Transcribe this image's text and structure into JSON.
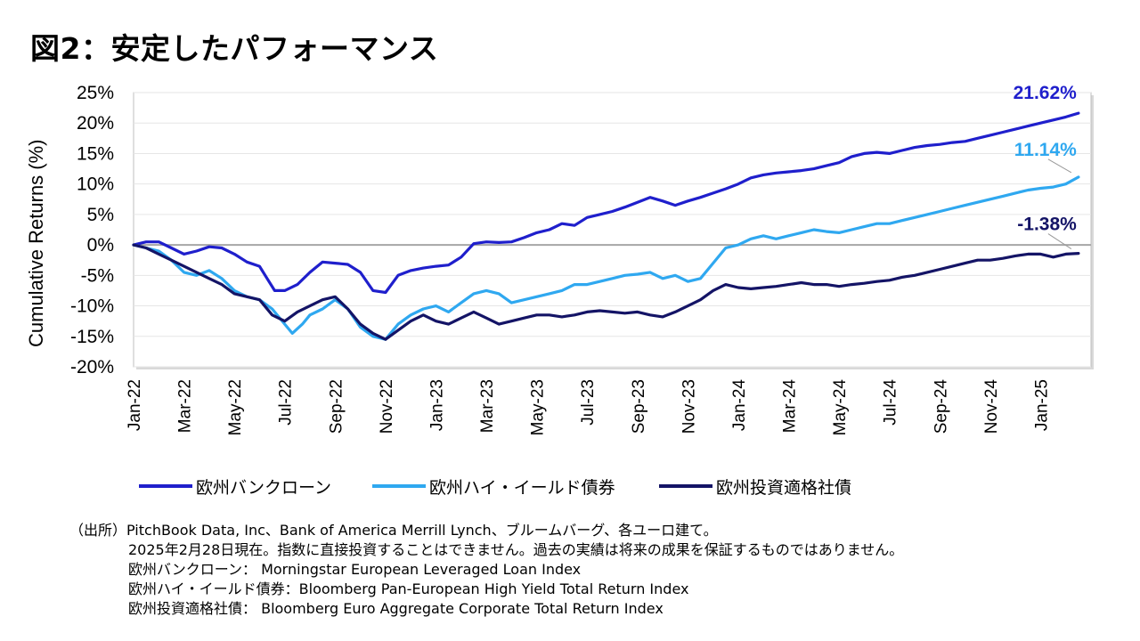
{
  "title": "図2：安定したパフォーマンス",
  "chart_data": {
    "type": "line",
    "ylabel": "Cumulative Returns (%)",
    "ylim": [
      -20,
      25
    ],
    "yticks": [
      25,
      20,
      15,
      10,
      5,
      0,
      -5,
      -10,
      -15,
      -20
    ],
    "ytick_labels": [
      "25%",
      "20%",
      "15%",
      "10%",
      "5%",
      "0%",
      "-5%",
      "-10%",
      "-15%",
      "-20%"
    ],
    "xlim": [
      0,
      38
    ],
    "x_tick_positions": [
      0,
      2,
      4,
      6,
      8,
      10,
      12,
      14,
      16,
      18,
      20,
      22,
      24,
      26,
      28,
      30,
      32,
      34,
      36
    ],
    "x_tick_labels": [
      "Jan-22",
      "Mar-22",
      "May-22",
      "Jul-22",
      "Sep-22",
      "Nov-22",
      "Jan-23",
      "Mar-23",
      "May-23",
      "Jul-23",
      "Sep-23",
      "Nov-23",
      "Jan-24",
      "Mar-24",
      "May-24",
      "Jul-24",
      "Sep-24",
      "Nov-24",
      "Jan-25"
    ],
    "grid": "horizontal",
    "legend_position": "bottom",
    "series": [
      {
        "name": "欧州バンクローン",
        "color": "#1f1fcc",
        "end_label": "21.62%",
        "points": [
          [
            0,
            0
          ],
          [
            0.5,
            0.5
          ],
          [
            1,
            0.5
          ],
          [
            1.5,
            -0.5
          ],
          [
            2,
            -1.5
          ],
          [
            2.5,
            -1.0
          ],
          [
            3,
            -0.3
          ],
          [
            3.5,
            -0.5
          ],
          [
            4,
            -1.5
          ],
          [
            4.5,
            -2.8
          ],
          [
            5,
            -3.5
          ],
          [
            5.3,
            -5.5
          ],
          [
            5.6,
            -7.5
          ],
          [
            6,
            -7.5
          ],
          [
            6.5,
            -6.5
          ],
          [
            7,
            -4.5
          ],
          [
            7.5,
            -2.8
          ],
          [
            8,
            -3.0
          ],
          [
            8.5,
            -3.2
          ],
          [
            9,
            -4.5
          ],
          [
            9.5,
            -7.5
          ],
          [
            10,
            -7.8
          ],
          [
            10.5,
            -5.0
          ],
          [
            11,
            -4.2
          ],
          [
            11.5,
            -3.8
          ],
          [
            12,
            -3.5
          ],
          [
            12.5,
            -3.3
          ],
          [
            13,
            -2.0
          ],
          [
            13.5,
            0.2
          ],
          [
            14,
            0.5
          ],
          [
            14.5,
            0.4
          ],
          [
            15,
            0.5
          ],
          [
            15.5,
            1.2
          ],
          [
            16,
            2.0
          ],
          [
            16.5,
            2.5
          ],
          [
            17,
            3.5
          ],
          [
            17.5,
            3.2
          ],
          [
            18,
            4.5
          ],
          [
            18.5,
            5.0
          ],
          [
            19,
            5.5
          ],
          [
            19.5,
            6.2
          ],
          [
            20,
            7.0
          ],
          [
            20.5,
            7.8
          ],
          [
            21,
            7.2
          ],
          [
            21.5,
            6.5
          ],
          [
            22,
            7.2
          ],
          [
            22.5,
            7.8
          ],
          [
            23,
            8.5
          ],
          [
            23.5,
            9.2
          ],
          [
            24,
            10.0
          ],
          [
            24.5,
            11.0
          ],
          [
            25,
            11.5
          ],
          [
            25.5,
            11.8
          ],
          [
            26,
            12.0
          ],
          [
            26.5,
            12.2
          ],
          [
            27,
            12.5
          ],
          [
            27.5,
            13.0
          ],
          [
            28,
            13.5
          ],
          [
            28.5,
            14.5
          ],
          [
            29,
            15.0
          ],
          [
            29.5,
            15.2
          ],
          [
            30,
            15.0
          ],
          [
            30.5,
            15.5
          ],
          [
            31,
            16.0
          ],
          [
            31.5,
            16.3
          ],
          [
            32,
            16.5
          ],
          [
            32.5,
            16.8
          ],
          [
            33,
            17.0
          ],
          [
            33.5,
            17.5
          ],
          [
            34,
            18.0
          ],
          [
            34.5,
            18.5
          ],
          [
            35,
            19.0
          ],
          [
            35.5,
            19.5
          ],
          [
            36,
            20.0
          ],
          [
            36.5,
            20.5
          ],
          [
            37,
            21.0
          ],
          [
            37.5,
            21.62
          ]
        ]
      },
      {
        "name": "欧州ハイ・イールド債券",
        "color": "#2fa8f0",
        "end_label": "11.14%",
        "points": [
          [
            0,
            0
          ],
          [
            0.5,
            -0.5
          ],
          [
            1,
            -1.0
          ],
          [
            1.5,
            -2.5
          ],
          [
            2,
            -4.5
          ],
          [
            2.5,
            -5.0
          ],
          [
            3,
            -4.2
          ],
          [
            3.5,
            -5.5
          ],
          [
            4,
            -7.5
          ],
          [
            4.5,
            -8.5
          ],
          [
            5,
            -9.0
          ],
          [
            5.5,
            -10.5
          ],
          [
            6,
            -13.0
          ],
          [
            6.3,
            -14.5
          ],
          [
            6.7,
            -13.0
          ],
          [
            7,
            -11.5
          ],
          [
            7.5,
            -10.5
          ],
          [
            8,
            -9.0
          ],
          [
            8.5,
            -10.5
          ],
          [
            9,
            -13.5
          ],
          [
            9.5,
            -15.0
          ],
          [
            10,
            -15.5
          ],
          [
            10.5,
            -13.0
          ],
          [
            11,
            -11.5
          ],
          [
            11.5,
            -10.5
          ],
          [
            12,
            -10.0
          ],
          [
            12.5,
            -11.0
          ],
          [
            13,
            -9.5
          ],
          [
            13.5,
            -8.0
          ],
          [
            14,
            -7.5
          ],
          [
            14.5,
            -8.0
          ],
          [
            15,
            -9.5
          ],
          [
            15.5,
            -9.0
          ],
          [
            16,
            -8.5
          ],
          [
            16.5,
            -8.0
          ],
          [
            17,
            -7.5
          ],
          [
            17.5,
            -6.5
          ],
          [
            18,
            -6.5
          ],
          [
            18.5,
            -6.0
          ],
          [
            19,
            -5.5
          ],
          [
            19.5,
            -5.0
          ],
          [
            20,
            -4.8
          ],
          [
            20.5,
            -4.5
          ],
          [
            21,
            -5.5
          ],
          [
            21.5,
            -5.0
          ],
          [
            22,
            -6.0
          ],
          [
            22.5,
            -5.5
          ],
          [
            23,
            -3.0
          ],
          [
            23.5,
            -0.5
          ],
          [
            24,
            0
          ],
          [
            24.5,
            1.0
          ],
          [
            25,
            1.5
          ],
          [
            25.5,
            1.0
          ],
          [
            26,
            1.5
          ],
          [
            26.5,
            2.0
          ],
          [
            27,
            2.5
          ],
          [
            27.5,
            2.2
          ],
          [
            28,
            2.0
          ],
          [
            28.5,
            2.5
          ],
          [
            29,
            3.0
          ],
          [
            29.5,
            3.5
          ],
          [
            30,
            3.5
          ],
          [
            30.5,
            4.0
          ],
          [
            31,
            4.5
          ],
          [
            31.5,
            5.0
          ],
          [
            32,
            5.5
          ],
          [
            32.5,
            6.0
          ],
          [
            33,
            6.5
          ],
          [
            33.5,
            7.0
          ],
          [
            34,
            7.5
          ],
          [
            34.5,
            8.0
          ],
          [
            35,
            8.5
          ],
          [
            35.5,
            9.0
          ],
          [
            36,
            9.3
          ],
          [
            36.5,
            9.5
          ],
          [
            37,
            10.0
          ],
          [
            37.5,
            11.14
          ]
        ]
      },
      {
        "name": "欧州投資適格社債",
        "color": "#141466",
        "end_label": "-1.38%",
        "points": [
          [
            0,
            0
          ],
          [
            0.5,
            -0.5
          ],
          [
            1,
            -1.5
          ],
          [
            1.5,
            -2.5
          ],
          [
            2,
            -3.5
          ],
          [
            2.5,
            -4.5
          ],
          [
            3,
            -5.5
          ],
          [
            3.5,
            -6.5
          ],
          [
            4,
            -8.0
          ],
          [
            4.5,
            -8.5
          ],
          [
            5,
            -9.0
          ],
          [
            5.5,
            -11.5
          ],
          [
            6,
            -12.5
          ],
          [
            6.5,
            -11.0
          ],
          [
            7,
            -10.0
          ],
          [
            7.5,
            -9.0
          ],
          [
            8,
            -8.5
          ],
          [
            8.5,
            -10.5
          ],
          [
            9,
            -13.0
          ],
          [
            9.5,
            -14.5
          ],
          [
            10,
            -15.5
          ],
          [
            10.5,
            -14.0
          ],
          [
            11,
            -12.5
          ],
          [
            11.5,
            -11.5
          ],
          [
            12,
            -12.5
          ],
          [
            12.5,
            -13.0
          ],
          [
            13,
            -12.0
          ],
          [
            13.5,
            -11.0
          ],
          [
            14,
            -12.0
          ],
          [
            14.5,
            -13.0
          ],
          [
            15,
            -12.5
          ],
          [
            15.5,
            -12.0
          ],
          [
            16,
            -11.5
          ],
          [
            16.5,
            -11.5
          ],
          [
            17,
            -11.8
          ],
          [
            17.5,
            -11.5
          ],
          [
            18,
            -11.0
          ],
          [
            18.5,
            -10.8
          ],
          [
            19,
            -11.0
          ],
          [
            19.5,
            -11.2
          ],
          [
            20,
            -11.0
          ],
          [
            20.5,
            -11.5
          ],
          [
            21,
            -11.8
          ],
          [
            21.5,
            -11.0
          ],
          [
            22,
            -10.0
          ],
          [
            22.5,
            -9.0
          ],
          [
            23,
            -7.5
          ],
          [
            23.5,
            -6.5
          ],
          [
            24,
            -7.0
          ],
          [
            24.5,
            -7.2
          ],
          [
            25,
            -7.0
          ],
          [
            25.5,
            -6.8
          ],
          [
            26,
            -6.5
          ],
          [
            26.5,
            -6.2
          ],
          [
            27,
            -6.5
          ],
          [
            27.5,
            -6.5
          ],
          [
            28,
            -6.8
          ],
          [
            28.5,
            -6.5
          ],
          [
            29,
            -6.3
          ],
          [
            29.5,
            -6.0
          ],
          [
            30,
            -5.8
          ],
          [
            30.5,
            -5.3
          ],
          [
            31,
            -5.0
          ],
          [
            31.5,
            -4.5
          ],
          [
            32,
            -4.0
          ],
          [
            32.5,
            -3.5
          ],
          [
            33,
            -3.0
          ],
          [
            33.5,
            -2.5
          ],
          [
            34,
            -2.5
          ],
          [
            34.5,
            -2.2
          ],
          [
            35,
            -1.8
          ],
          [
            35.5,
            -1.5
          ],
          [
            36,
            -1.5
          ],
          [
            36.5,
            -2.0
          ],
          [
            37,
            -1.5
          ],
          [
            37.5,
            -1.38
          ]
        ]
      }
    ]
  },
  "notes": [
    "（出所）PitchBook Data, Inc、Bank of America Merrill Lynch、ブルームバーグ、各ユーロ建て。",
    "2025年2月28日現在。指数に直接投資することはできません。過去の実績は将来の成果を保証するものではありません。",
    "欧州バンクローン： Morningstar European Leveraged Loan Index",
    "欧州ハイ・イールド債券：Bloomberg Pan-European High Yield Total Return Index",
    "欧州投資適格社債： Bloomberg Euro Aggregate Corporate Total Return Index"
  ]
}
